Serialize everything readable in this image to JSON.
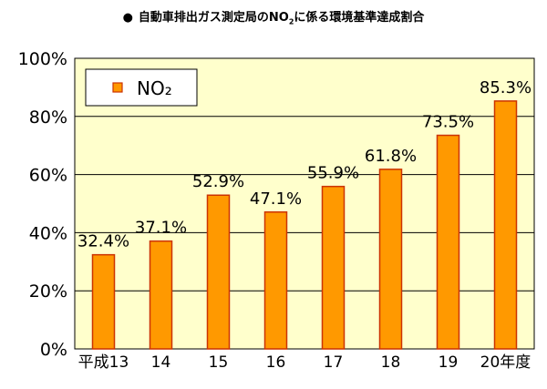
{
  "chart_data": {
    "type": "bar",
    "title_bullet": "●",
    "title_parts": {
      "before": "自動車排出ガス測定局のNO",
      "subscript": "2",
      "after": "に係る環境基準達成割合"
    },
    "categories": [
      "平成13",
      "14",
      "15",
      "16",
      "17",
      "18",
      "19",
      "20年度"
    ],
    "values": [
      32.4,
      37.1,
      52.9,
      47.1,
      55.9,
      61.8,
      73.5,
      85.3
    ],
    "data_labels": [
      "32.4%",
      "37.1%",
      "52.9%",
      "47.1%",
      "55.9%",
      "61.8%",
      "73.5%",
      "85.3%"
    ],
    "ylim": [
      0,
      100
    ],
    "yticks": [
      0,
      20,
      40,
      60,
      80,
      100
    ],
    "ytick_labels": [
      "0%",
      "20%",
      "40%",
      "60%",
      "80%",
      "100%"
    ],
    "grid": true,
    "legend_position": "top-left",
    "series": [
      {
        "name": "NO₂",
        "values": [
          32.4,
          37.1,
          52.9,
          47.1,
          55.9,
          61.8,
          73.5,
          85.3
        ]
      }
    ],
    "colors": {
      "plot_background": "#FFFFCC",
      "bar_fill": "#FF9900",
      "bar_stroke": "#CC3300",
      "grid": "#000000",
      "text": "#000000"
    }
  }
}
